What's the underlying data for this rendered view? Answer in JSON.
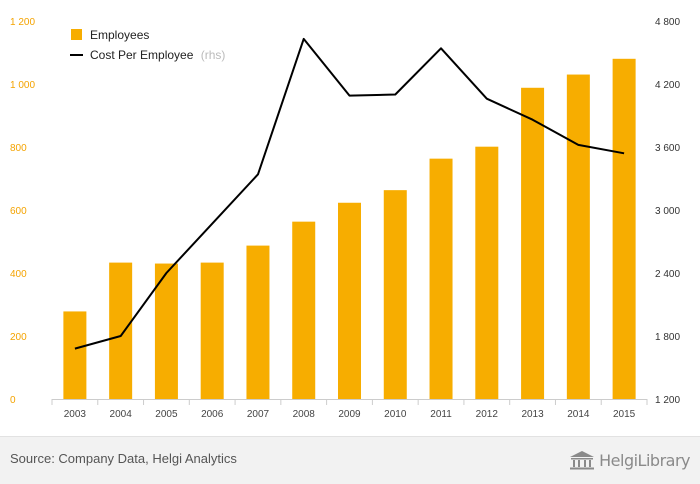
{
  "chart_data": {
    "type": "bar",
    "categories": [
      "2003",
      "2004",
      "2005",
      "2006",
      "2007",
      "2008",
      "2009",
      "2010",
      "2011",
      "2012",
      "2013",
      "2014",
      "2015"
    ],
    "series": [
      {
        "name": "Employees",
        "type": "bar",
        "axis": "left",
        "color": "#f7ad00",
        "values": [
          278,
          433,
          430,
          433,
          487,
          563,
          623,
          663,
          763,
          801,
          988,
          1030,
          1080
        ]
      },
      {
        "name": "Cost Per Employee",
        "type": "line",
        "axis": "right",
        "color": "#000000",
        "values": [
          1680,
          1800,
          2400,
          2870,
          3340,
          4630,
          4090,
          4100,
          4540,
          4060,
          3860,
          3620,
          3540
        ]
      }
    ],
    "y_left": {
      "ylim": [
        0,
        1200
      ],
      "ticks": [
        0,
        200,
        400,
        600,
        800,
        1000,
        1200
      ],
      "tick_labels": [
        "0",
        "200",
        "400",
        "600",
        "800",
        "1 000",
        "1 200"
      ]
    },
    "y_right": {
      "ylim": [
        1200,
        4800
      ],
      "ticks": [
        1200,
        1800,
        2400,
        3000,
        3600,
        4200,
        4800
      ],
      "tick_labels": [
        "1 200",
        "1 800",
        "2 400",
        "3 000",
        "3 600",
        "4 200",
        "4 800"
      ]
    },
    "legend": {
      "position": "top-left",
      "items": [
        {
          "label": "Employees",
          "suffix": ""
        },
        {
          "label": "Cost Per Employee",
          "suffix": "(rhs)"
        }
      ]
    },
    "grid": false
  },
  "footer": {
    "source": "Source: Company Data, Helgi Analytics",
    "brand": "HelgiLibrary"
  }
}
